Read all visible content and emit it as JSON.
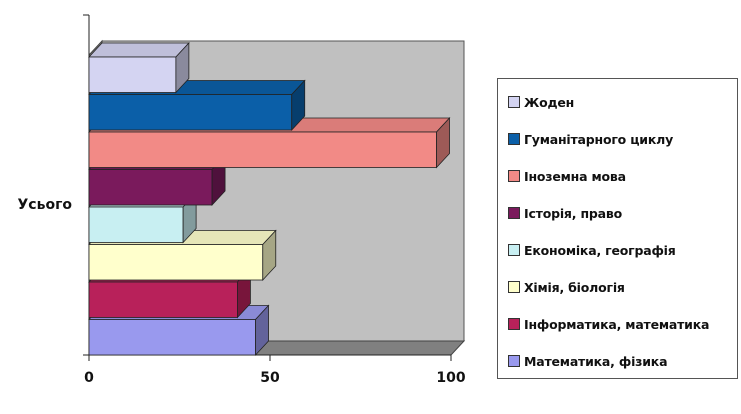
{
  "chart_data": {
    "type": "bar",
    "orientation": "horizontal",
    "style": "3d",
    "categories": [
      "Усього"
    ],
    "series": [
      {
        "name": "Математика, фізика",
        "values": [
          46
        ],
        "color": "#9999ee"
      },
      {
        "name": "Інформатика, математика",
        "values": [
          41
        ],
        "color": "#b8215a"
      },
      {
        "name": "Хімія, біологія",
        "values": [
          48
        ],
        "color": "#ffffcc"
      },
      {
        "name": "Економіка, географія",
        "values": [
          26
        ],
        "color": "#c8eff2"
      },
      {
        "name": "Історія, право",
        "values": [
          34
        ],
        "color": "#7a1a5c"
      },
      {
        "name": "Іноземна мова",
        "values": [
          96
        ],
        "color": "#f28a86"
      },
      {
        "name": "Гуманітарного циклу",
        "values": [
          56
        ],
        "color": "#0b5fa8"
      },
      {
        "name": "Жоден",
        "values": [
          24
        ],
        "color": "#d4d4f2"
      }
    ],
    "xlim": [
      0,
      100
    ],
    "xticks": [
      "0",
      "50",
      "100"
    ],
    "plot_background": "#c0c0c0",
    "wall_color": "#808080",
    "legend_position": "right",
    "title": "",
    "xlabel": "",
    "ylabel": ""
  }
}
